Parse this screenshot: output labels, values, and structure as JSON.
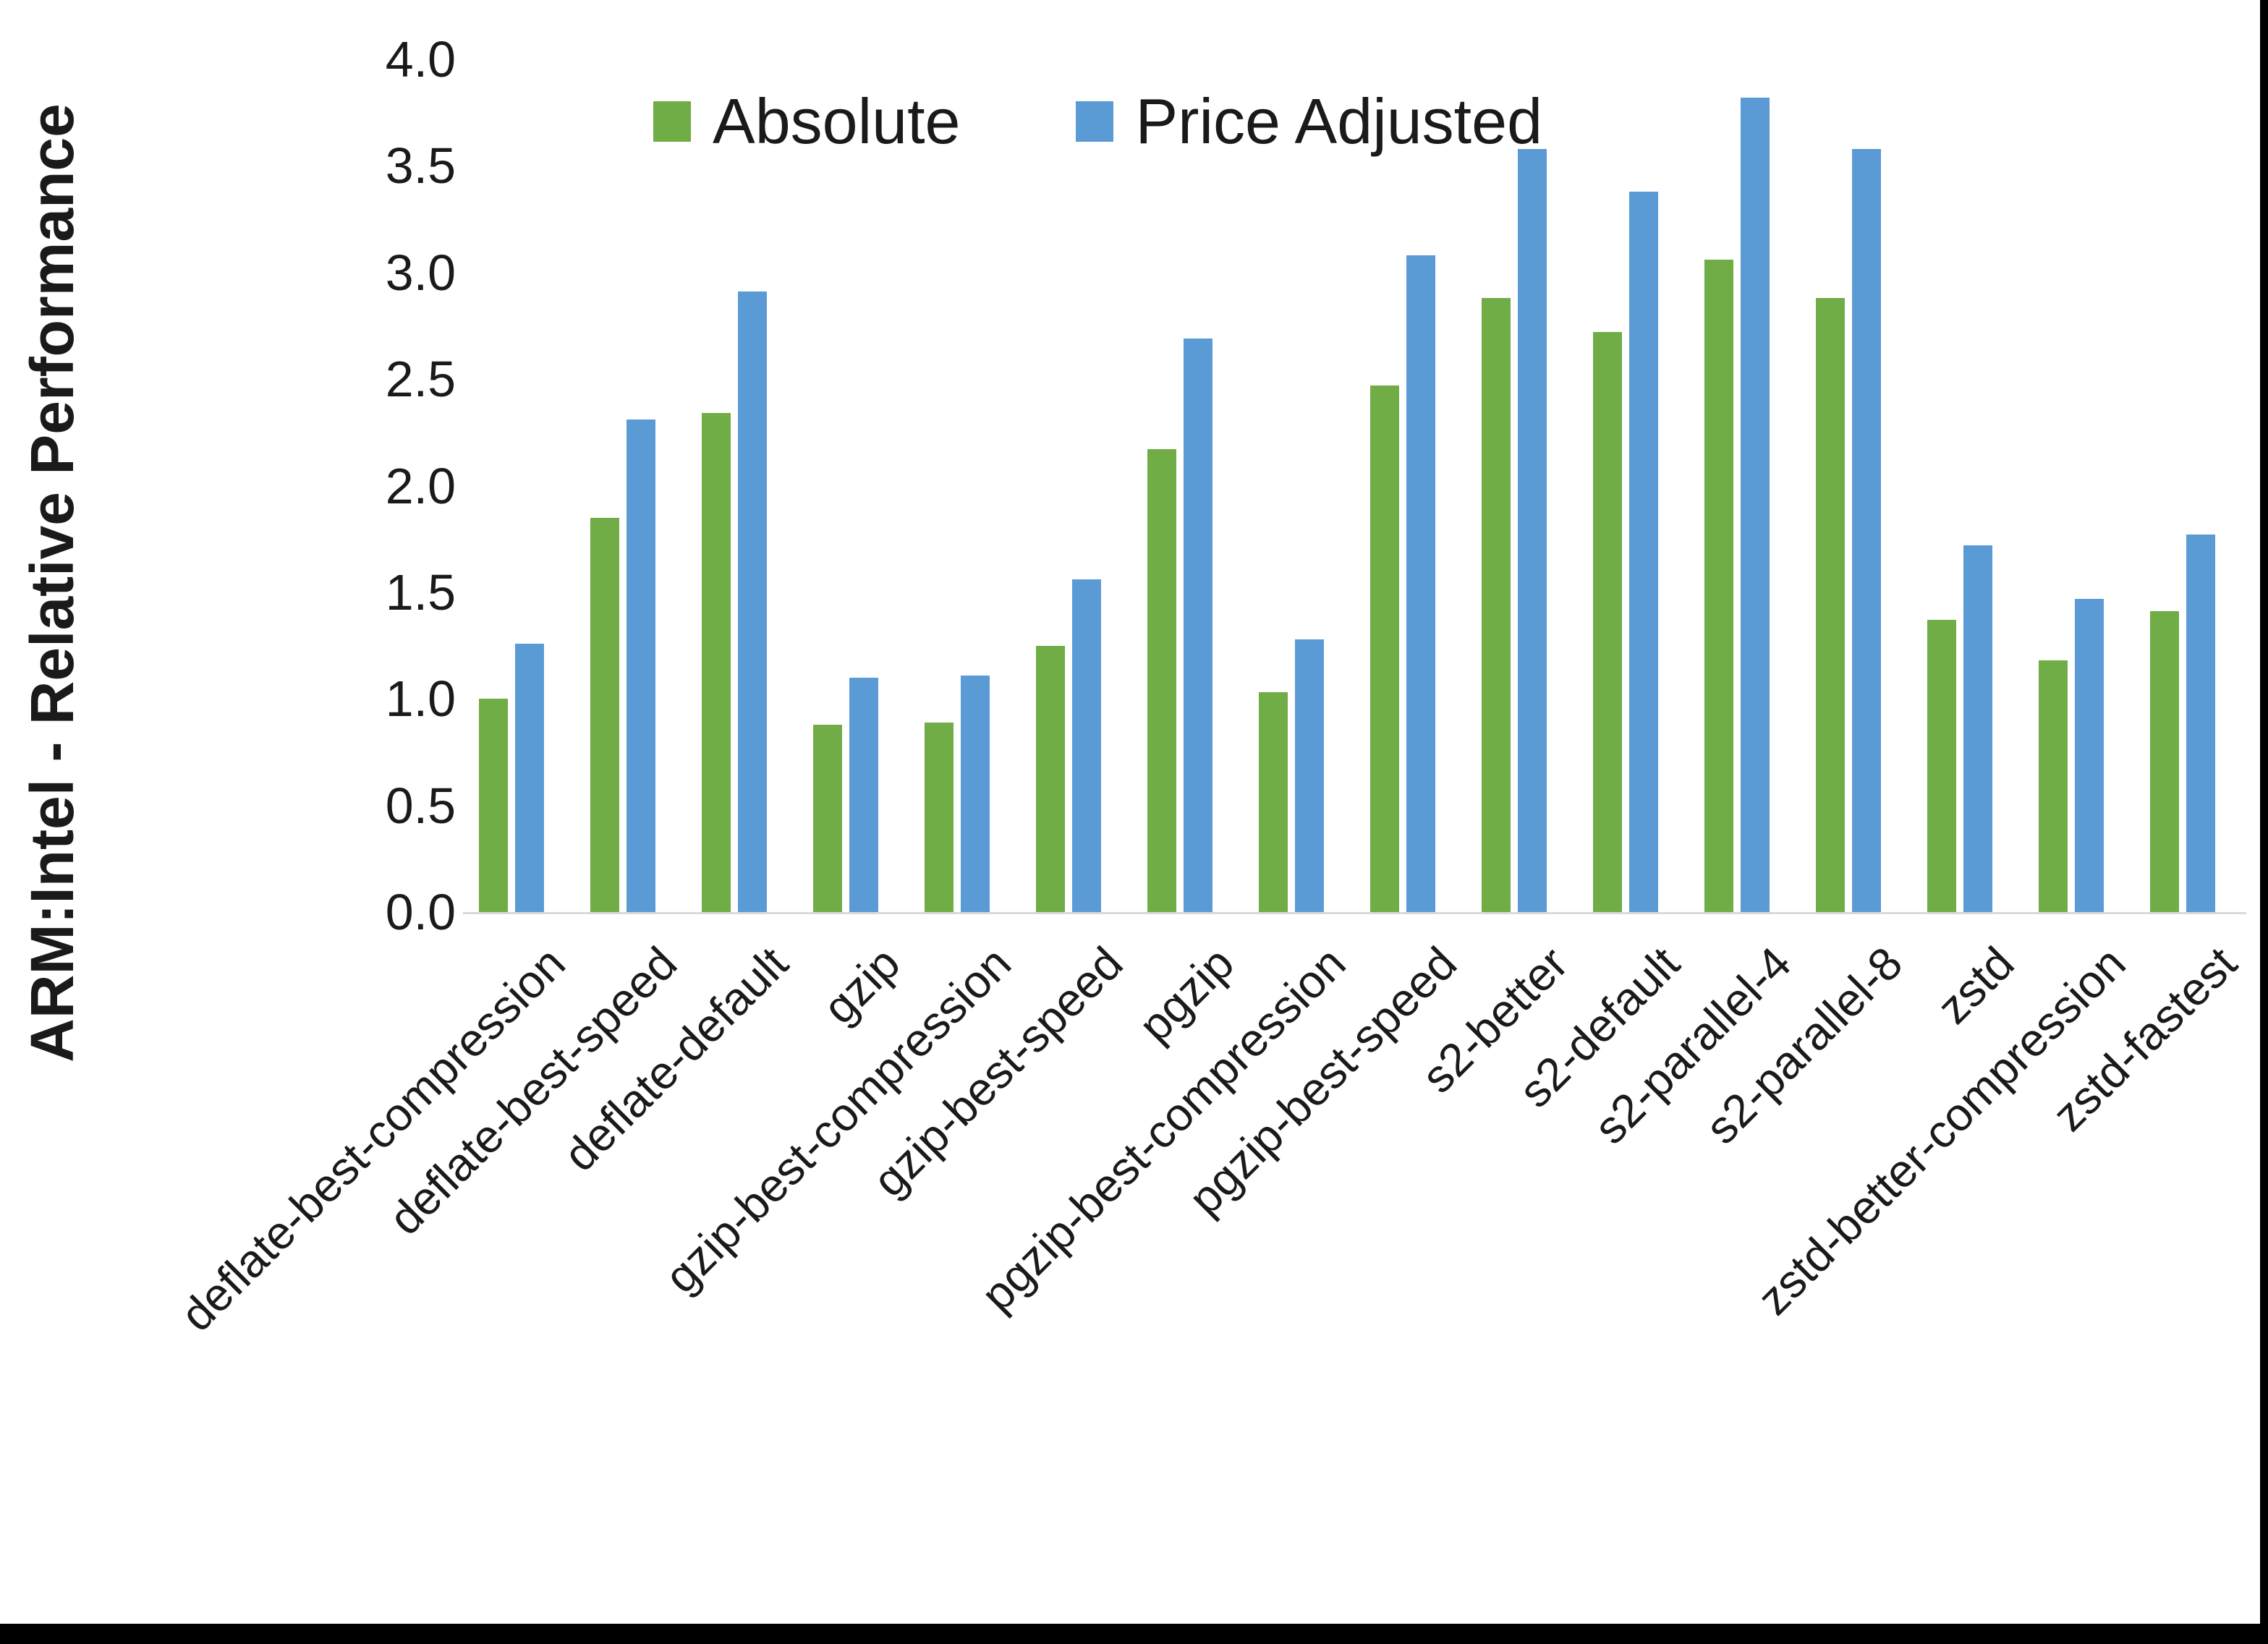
{
  "chart_data": {
    "type": "bar",
    "title": "",
    "xlabel": "",
    "ylabel": "ARM:Intel - Relative Performance",
    "ylim": [
      0.0,
      4.0
    ],
    "ytick_labels": [
      "0.0",
      "0.5",
      "1.0",
      "1.5",
      "2.0",
      "2.5",
      "3.0",
      "3.5",
      "4.0"
    ],
    "grid": false,
    "legend_position": "top-center",
    "categories": [
      "deflate-best-compression",
      "deflate-best-speed",
      "deflate-default",
      "gzip",
      "gzip-best-compression",
      "gzip-best-speed",
      "pgzip",
      "pgzip-best-compression",
      "pgzip-best-speed",
      "s2-better",
      "s2-default",
      "s2-parallel-4",
      "s2-parallel-8",
      "zstd",
      "zstd-better-compression",
      "zstd-fastest"
    ],
    "series": [
      {
        "name": "Absolute",
        "color": "#70AD47",
        "values": [
          1.0,
          1.85,
          2.34,
          0.88,
          0.89,
          1.25,
          2.17,
          1.03,
          2.47,
          2.88,
          2.72,
          3.06,
          2.88,
          1.37,
          1.18,
          1.41
        ]
      },
      {
        "name": "Price Adjusted",
        "color": "#5B9BD5",
        "values": [
          1.26,
          2.31,
          2.91,
          1.1,
          1.11,
          1.56,
          2.69,
          1.28,
          3.08,
          3.58,
          3.38,
          3.82,
          3.58,
          1.72,
          1.47,
          1.77
        ]
      }
    ]
  }
}
